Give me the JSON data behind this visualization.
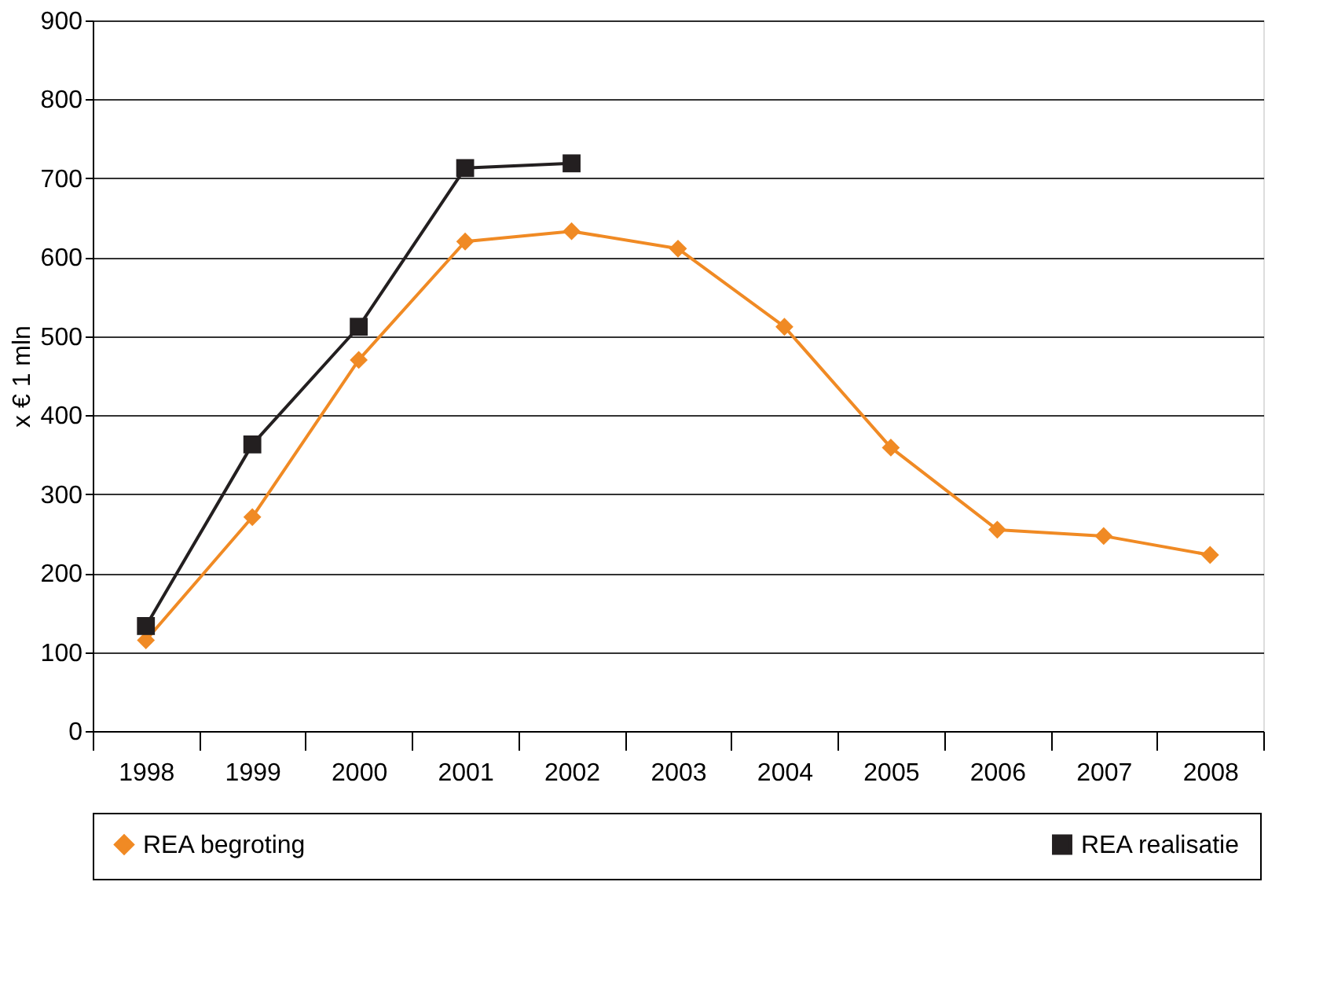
{
  "chart_data": {
    "type": "line",
    "ylabel": "x € 1 mln",
    "categories": [
      "1998",
      "1999",
      "2000",
      "2001",
      "2002",
      "2003",
      "2004",
      "2005",
      "2006",
      "2007",
      "2008"
    ],
    "ylim": [
      0,
      900
    ],
    "yticks": [
      0,
      100,
      200,
      300,
      400,
      500,
      600,
      700,
      800,
      900
    ],
    "grid": "y",
    "legend": "bottom",
    "line_style": "solid",
    "series": [
      {
        "name": "REA begroting",
        "color": "#f08a24",
        "marker": "diamond",
        "values": [
          115,
          271,
          470,
          620,
          633,
          611,
          512,
          359,
          255,
          247,
          223
        ]
      },
      {
        "name": "REA realisatie",
        "color": "#231f20",
        "marker": "square",
        "values": [
          133,
          363,
          512,
          713,
          719,
          null,
          null,
          null,
          null,
          null,
          null
        ]
      }
    ]
  }
}
